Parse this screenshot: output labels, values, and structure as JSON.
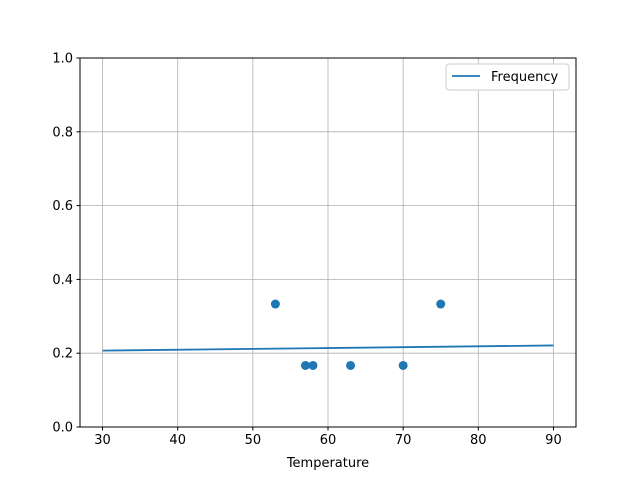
{
  "chart_data": {
    "type": "scatter",
    "title": "",
    "xlabel": "Temperature",
    "ylabel": "",
    "xlim": [
      27,
      93
    ],
    "ylim": [
      0,
      1.0
    ],
    "xticks": [
      30,
      40,
      50,
      60,
      70,
      80,
      90
    ],
    "yticks": [
      0.0,
      0.2,
      0.4,
      0.6,
      0.8,
      1.0
    ],
    "xtick_labels": [
      "30",
      "40",
      "50",
      "60",
      "70",
      "80",
      "90"
    ],
    "ytick_labels": [
      "0.0",
      "0.2",
      "0.4",
      "0.6",
      "0.8",
      "1.0"
    ],
    "grid": true,
    "legend_position": "top-right",
    "color": "#1f77b4",
    "points": {
      "x": [
        53,
        57,
        58,
        63,
        70,
        75
      ],
      "y": [
        0.3333,
        0.1667,
        0.1667,
        0.1667,
        0.1667,
        0.3333
      ]
    },
    "line": {
      "name": "Frequency",
      "x": [
        30,
        90
      ],
      "y": [
        0.207,
        0.221
      ]
    }
  }
}
